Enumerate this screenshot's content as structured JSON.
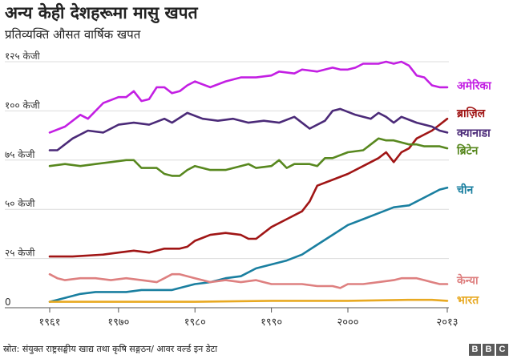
{
  "title": "अन्य केही देशहरूमा मासु खपत",
  "subtitle": "प्रतिव्यक्ति औसत वार्षिक खपत",
  "footer": "स्रोत: संयुक्त राष्ट्रसङ्घीय खाद्य तथा कृषि सङ्गठन/ आवर वर्ल्ड इन डेटा",
  "logo": [
    "B",
    "B",
    "C"
  ],
  "chart_data": {
    "type": "line",
    "ylim": [
      0,
      125
    ],
    "xlim": [
      1961,
      2013
    ],
    "grid": true,
    "y_ticks": [
      {
        "value": 0,
        "label": "0"
      },
      {
        "value": 25,
        "label": "२५ केजी"
      },
      {
        "value": 50,
        "label": "५० केजी"
      },
      {
        "value": 75,
        "label": "७५ केजी"
      },
      {
        "value": 100,
        "label": "१०० केजी"
      },
      {
        "value": 125,
        "label": "१२५ केजी"
      }
    ],
    "x_ticks": [
      {
        "value": 1961,
        "label": "१९६१"
      },
      {
        "value": 1970,
        "label": "१९७०"
      },
      {
        "value": 1980,
        "label": "१९८०"
      },
      {
        "value": 1990,
        "label": "१९९०"
      },
      {
        "value": 2000,
        "label": "२०००"
      },
      {
        "value": 2013,
        "label": "२०१३"
      }
    ],
    "series": [
      {
        "name": "अमेरिका",
        "color": "#c31fe3",
        "label_y": 113,
        "points": [
          [
            1961,
            89
          ],
          [
            1963,
            92
          ],
          [
            1965,
            98
          ],
          [
            1966,
            96
          ],
          [
            1968,
            104
          ],
          [
            1970,
            107
          ],
          [
            1971,
            107
          ],
          [
            1972,
            110
          ],
          [
            1973,
            105
          ],
          [
            1974,
            106
          ],
          [
            1975,
            112
          ],
          [
            1976,
            112
          ],
          [
            1977,
            109
          ],
          [
            1978,
            110
          ],
          [
            1979,
            113
          ],
          [
            1980,
            115
          ],
          [
            1982,
            112
          ],
          [
            1984,
            115
          ],
          [
            1986,
            117
          ],
          [
            1988,
            117
          ],
          [
            1990,
            118
          ],
          [
            1991,
            120
          ],
          [
            1993,
            119
          ],
          [
            1994,
            121
          ],
          [
            1996,
            120
          ],
          [
            1997,
            121
          ],
          [
            1998,
            122
          ],
          [
            1999,
            121
          ],
          [
            2000,
            121
          ],
          [
            2001,
            122
          ],
          [
            2002,
            124
          ],
          [
            2003,
            124
          ],
          [
            2004,
            124
          ],
          [
            2005,
            125
          ],
          [
            2006,
            124
          ],
          [
            2007,
            125
          ],
          [
            2008,
            123
          ],
          [
            2009,
            118
          ],
          [
            2010,
            117
          ],
          [
            2011,
            113
          ],
          [
            2012,
            112
          ],
          [
            2013,
            112
          ]
        ]
      },
      {
        "name": "ब्राज़िल",
        "color": "#a01515",
        "label_y": 99,
        "points": [
          [
            1961,
            26
          ],
          [
            1964,
            26
          ],
          [
            1968,
            27
          ],
          [
            1970,
            28
          ],
          [
            1972,
            29
          ],
          [
            1974,
            28
          ],
          [
            1976,
            30
          ],
          [
            1978,
            30
          ],
          [
            1979,
            31
          ],
          [
            1980,
            34
          ],
          [
            1982,
            37
          ],
          [
            1984,
            38
          ],
          [
            1986,
            37
          ],
          [
            1987,
            35
          ],
          [
            1988,
            35
          ],
          [
            1990,
            41
          ],
          [
            1992,
            45
          ],
          [
            1994,
            49
          ],
          [
            1995,
            54
          ],
          [
            1996,
            62
          ],
          [
            1998,
            65
          ],
          [
            2000,
            68
          ],
          [
            2002,
            72
          ],
          [
            2004,
            76
          ],
          [
            2005,
            79
          ],
          [
            2006,
            74
          ],
          [
            2007,
            79
          ],
          [
            2008,
            81
          ],
          [
            2009,
            86
          ],
          [
            2010,
            88
          ],
          [
            2011,
            90
          ],
          [
            2012,
            93
          ],
          [
            2013,
            96
          ]
        ]
      },
      {
        "name": "क्यानाडा",
        "color": "#4b2a78",
        "label_y": 89,
        "points": [
          [
            1961,
            80
          ],
          [
            1962,
            80
          ],
          [
            1964,
            86
          ],
          [
            1966,
            90
          ],
          [
            1968,
            89
          ],
          [
            1970,
            93
          ],
          [
            1972,
            94
          ],
          [
            1974,
            93
          ],
          [
            1976,
            96
          ],
          [
            1977,
            94
          ],
          [
            1979,
            99
          ],
          [
            1981,
            96
          ],
          [
            1983,
            95
          ],
          [
            1985,
            96
          ],
          [
            1987,
            94
          ],
          [
            1989,
            95
          ],
          [
            1991,
            94
          ],
          [
            1993,
            97
          ],
          [
            1995,
            91
          ],
          [
            1997,
            95
          ],
          [
            1998,
            100
          ],
          [
            1999,
            101
          ],
          [
            2001,
            98
          ],
          [
            2003,
            96
          ],
          [
            2004,
            99
          ],
          [
            2005,
            97
          ],
          [
            2006,
            94
          ],
          [
            2007,
            97
          ],
          [
            2009,
            94
          ],
          [
            2011,
            92
          ],
          [
            2012,
            90
          ],
          [
            2013,
            89
          ]
        ]
      },
      {
        "name": "ब्रिटेन",
        "color": "#58881f",
        "label_y": 80,
        "points": [
          [
            1961,
            72
          ],
          [
            1963,
            73
          ],
          [
            1965,
            72
          ],
          [
            1967,
            73
          ],
          [
            1969,
            74
          ],
          [
            1971,
            75
          ],
          [
            1972,
            75
          ],
          [
            1973,
            71
          ],
          [
            1975,
            71
          ],
          [
            1976,
            68
          ],
          [
            1977,
            67
          ],
          [
            1978,
            67
          ],
          [
            1979,
            70
          ],
          [
            1980,
            72
          ],
          [
            1982,
            70
          ],
          [
            1984,
            70
          ],
          [
            1986,
            72
          ],
          [
            1987,
            73
          ],
          [
            1988,
            71
          ],
          [
            1990,
            72
          ],
          [
            1991,
            75
          ],
          [
            1992,
            71
          ],
          [
            1993,
            73
          ],
          [
            1995,
            73
          ],
          [
            1996,
            72
          ],
          [
            1997,
            76
          ],
          [
            1998,
            76
          ],
          [
            2000,
            79
          ],
          [
            2002,
            80
          ],
          [
            2003,
            83
          ],
          [
            2004,
            86
          ],
          [
            2005,
            85
          ],
          [
            2006,
            85
          ],
          [
            2007,
            84
          ],
          [
            2008,
            83
          ],
          [
            2009,
            83
          ],
          [
            2010,
            82
          ],
          [
            2011,
            82
          ],
          [
            2012,
            82
          ],
          [
            2013,
            81
          ]
        ]
      },
      {
        "name": "चीन",
        "color": "#1a7fa0",
        "label_y": 60,
        "points": [
          [
            1961,
            3
          ],
          [
            1963,
            5
          ],
          [
            1965,
            7
          ],
          [
            1967,
            8
          ],
          [
            1969,
            8
          ],
          [
            1971,
            8
          ],
          [
            1973,
            9
          ],
          [
            1975,
            9
          ],
          [
            1977,
            9
          ],
          [
            1978,
            10
          ],
          [
            1980,
            12
          ],
          [
            1982,
            13
          ],
          [
            1984,
            15
          ],
          [
            1986,
            16
          ],
          [
            1988,
            20
          ],
          [
            1990,
            22
          ],
          [
            1992,
            24
          ],
          [
            1994,
            27
          ],
          [
            1996,
            32
          ],
          [
            1998,
            37
          ],
          [
            2000,
            42
          ],
          [
            2002,
            45
          ],
          [
            2004,
            48
          ],
          [
            2006,
            51
          ],
          [
            2008,
            52
          ],
          [
            2010,
            56
          ],
          [
            2012,
            60
          ],
          [
            2013,
            61
          ]
        ]
      },
      {
        "name": "केन्या",
        "color": "#de8080",
        "label_y": 14,
        "points": [
          [
            1961,
            17
          ],
          [
            1962,
            15
          ],
          [
            1963,
            14
          ],
          [
            1965,
            15
          ],
          [
            1967,
            15
          ],
          [
            1969,
            14
          ],
          [
            1971,
            15
          ],
          [
            1973,
            14
          ],
          [
            1975,
            13
          ],
          [
            1976,
            15
          ],
          [
            1977,
            17
          ],
          [
            1978,
            17
          ],
          [
            1979,
            16
          ],
          [
            1980,
            15
          ],
          [
            1981,
            14
          ],
          [
            1982,
            13
          ],
          [
            1984,
            14
          ],
          [
            1986,
            13
          ],
          [
            1988,
            14
          ],
          [
            1989,
            13
          ],
          [
            1990,
            12
          ],
          [
            1992,
            12
          ],
          [
            1994,
            12
          ],
          [
            1996,
            11
          ],
          [
            1998,
            11
          ],
          [
            1999,
            10
          ],
          [
            2000,
            12
          ],
          [
            2002,
            12
          ],
          [
            2004,
            13
          ],
          [
            2006,
            14
          ],
          [
            2007,
            15
          ],
          [
            2008,
            15
          ],
          [
            2009,
            15
          ],
          [
            2010,
            14
          ],
          [
            2011,
            13
          ],
          [
            2012,
            12
          ],
          [
            2013,
            12
          ]
        ]
      },
      {
        "name": "भारत",
        "color": "#e8a922",
        "label_y": 4,
        "points": [
          [
            1961,
            3
          ],
          [
            1970,
            3
          ],
          [
            1980,
            3
          ],
          [
            1990,
            3.5
          ],
          [
            2000,
            3.5
          ],
          [
            2008,
            4
          ],
          [
            2011,
            4
          ],
          [
            2013,
            3.5
          ]
        ]
      }
    ]
  }
}
